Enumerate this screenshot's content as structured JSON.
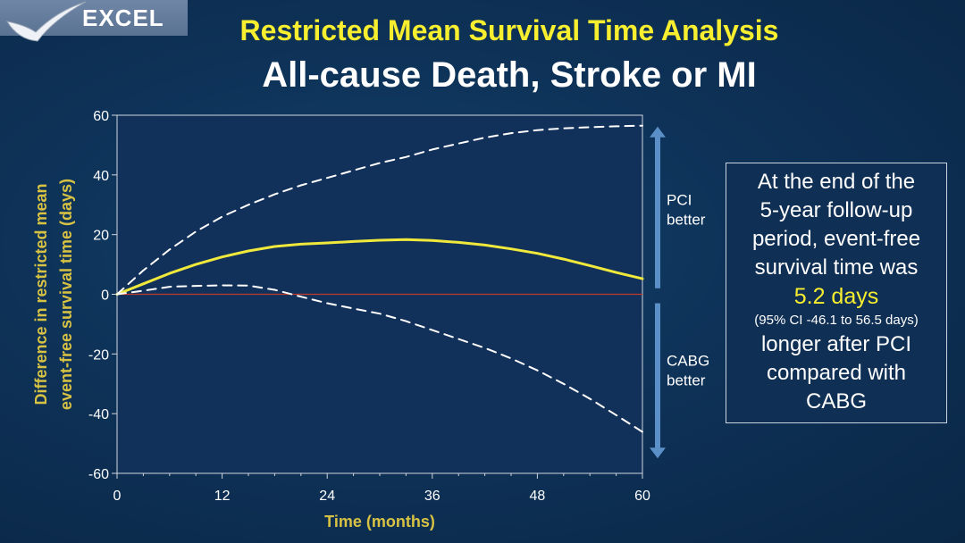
{
  "logo": {
    "text": "EXCEL"
  },
  "title": "Restricted Mean Survival Time Analysis",
  "subtitle": "All-cause Death, Stroke or MI",
  "callout": {
    "line1": "At the end of the",
    "line2": "5-year follow-up",
    "line3": "period, event-free",
    "line4": "survival time was",
    "highlight": "5.2 days",
    "ci": "(95% CI -46.1 to 56.5 days)",
    "line5": "longer after PCI",
    "line6": "compared with",
    "line7": "CABG"
  },
  "colors": {
    "title": "#f6ee2e",
    "axis_label": "#d8c244",
    "estimate_line": "#f0e93c",
    "zero_line": "#c0392b",
    "plot_bg": "#12315a",
    "arrow": "#5b8fc7"
  },
  "chart_data": {
    "type": "line",
    "xlabel": "Time (months)",
    "ylabel": [
      "Difference in restricted mean",
      "event-free survival time (days)"
    ],
    "xlim": [
      0,
      60
    ],
    "ylim": [
      -60,
      60
    ],
    "xticks": [
      0,
      12,
      24,
      36,
      48,
      60
    ],
    "yticks": [
      60,
      40,
      20,
      0,
      -20,
      -40,
      -60
    ],
    "grid": false,
    "reference_line_y": 0,
    "series": [
      {
        "style": "solid",
        "x": [
          0,
          3,
          6,
          9,
          12,
          15,
          18,
          21,
          24,
          27,
          30,
          33,
          36,
          39,
          42,
          45,
          48,
          51,
          54,
          57,
          60
        ],
        "y": [
          0,
          3.5,
          7,
          10,
          12.5,
          14.5,
          16,
          16.8,
          17.2,
          17.7,
          18.1,
          18.3,
          18,
          17.4,
          16.5,
          15.2,
          13.7,
          11.8,
          9.6,
          7.3,
          5.2
        ]
      },
      {
        "style": "dashed",
        "x": [
          0,
          3,
          6,
          9,
          12,
          15,
          18,
          21,
          24,
          27,
          30,
          33,
          36,
          39,
          42,
          45,
          48,
          51,
          54,
          57,
          60
        ],
        "y": [
          0,
          8,
          15,
          21,
          26,
          30,
          33.5,
          36.5,
          39,
          41.5,
          44,
          46,
          48.5,
          50.5,
          52.5,
          54,
          55,
          55.6,
          56,
          56.3,
          56.5
        ]
      },
      {
        "style": "dashed",
        "x": [
          0,
          3,
          6,
          9,
          12,
          15,
          18,
          21,
          24,
          27,
          30,
          33,
          36,
          39,
          42,
          45,
          48,
          51,
          54,
          57,
          60
        ],
        "y": [
          0,
          1.2,
          2.5,
          2.8,
          3,
          2.9,
          1.5,
          -0.8,
          -3,
          -4.8,
          -6.5,
          -9,
          -12,
          -15,
          -18,
          -21.5,
          -25.5,
          -30,
          -35,
          -40.5,
          -46.1
        ]
      }
    ],
    "annotations": [
      {
        "text": [
          "PCI",
          "better"
        ],
        "direction": "up"
      },
      {
        "text": [
          "CABG",
          "better"
        ],
        "direction": "down"
      }
    ]
  }
}
